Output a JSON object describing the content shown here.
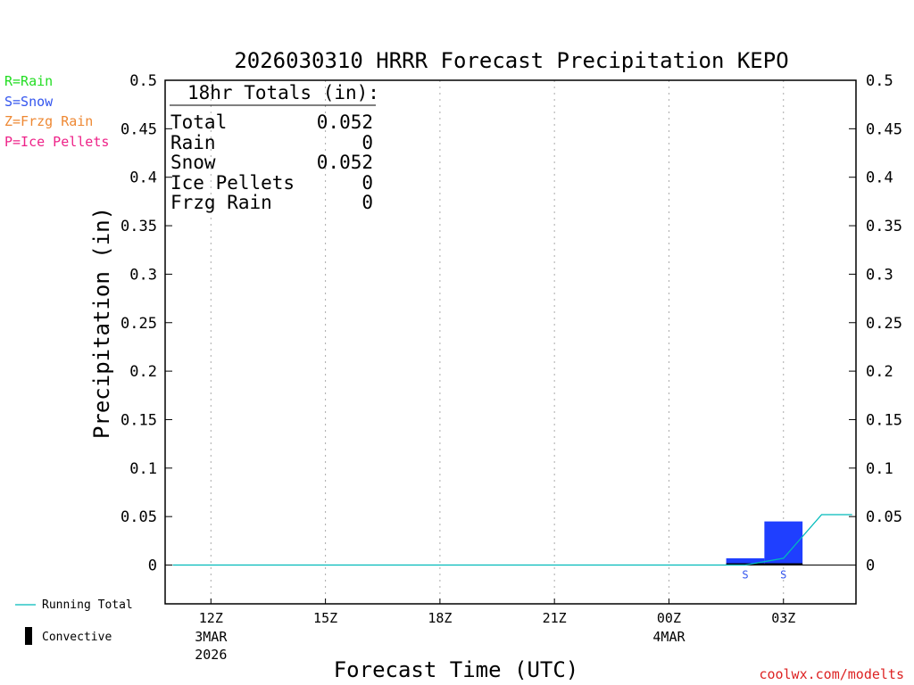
{
  "chart_data": {
    "type": "bar",
    "title": "2026030310 HRRR Forecast Precipitation KEPO",
    "xlabel": "Forecast Time (UTC)",
    "ylabel": "Precipitation (in)",
    "ylim": [
      -0.04,
      0.5
    ],
    "yticks": [
      0,
      0.05,
      0.1,
      0.15,
      0.2,
      0.25,
      0.3,
      0.35,
      0.4,
      0.45,
      0.5
    ],
    "ytick_labels": [
      "0",
      "0.05",
      "0.1",
      "0.15",
      "0.2",
      "0.25",
      "0.3",
      "0.35",
      "0.4",
      "0.45",
      "0.5"
    ],
    "xlim_hours": [
      -1.2,
      16.9
    ],
    "xticks": [
      {
        "hour": 0,
        "label": "12Z",
        "date": "3MAR",
        "year": "2026"
      },
      {
        "hour": 3,
        "label": "15Z",
        "date": "",
        "year": ""
      },
      {
        "hour": 6,
        "label": "18Z",
        "date": "",
        "year": ""
      },
      {
        "hour": 9,
        "label": "21Z",
        "date": "",
        "year": ""
      },
      {
        "hour": 12,
        "label": "00Z",
        "date": "4MAR",
        "year": ""
      },
      {
        "hour": 15,
        "label": "03Z",
        "date": "",
        "year": ""
      }
    ],
    "grid": "vertical dotted",
    "series": [
      {
        "name": "",
        "kind": "hourly bars",
        "hours": [
          -1,
          0,
          1,
          2,
          3,
          4,
          5,
          6,
          7,
          8,
          9,
          10,
          11,
          12,
          13,
          14,
          15,
          16
        ],
        "values": [
          0,
          0,
          0,
          0,
          0,
          0,
          0,
          0,
          0,
          0,
          0,
          0,
          0,
          0,
          0,
          0.007,
          0.045,
          0
        ],
        "ptype": [
          "",
          "",
          "",
          "",
          "",
          "",
          "",
          "",
          "",
          "",
          "",
          "",
          "",
          "",
          "",
          "S",
          "S",
          ""
        ],
        "color": "#1f3fff"
      },
      {
        "name": "Running Total",
        "kind": "line",
        "hours": [
          -1,
          0,
          1,
          2,
          3,
          4,
          5,
          6,
          7,
          8,
          9,
          10,
          11,
          12,
          13,
          14,
          15,
          16,
          16.8
        ],
        "values": [
          0,
          0,
          0,
          0,
          0,
          0,
          0,
          0,
          0,
          0,
          0,
          0,
          0,
          0,
          0,
          0,
          0.007,
          0.052,
          0.052
        ],
        "color": "#00bbbb"
      }
    ],
    "totals_box": {
      "heading": "18hr Totals (in):",
      "rows": [
        {
          "label": "Total",
          "value": "0.052"
        },
        {
          "label": "Rain",
          "value": "0"
        },
        {
          "label": "Snow",
          "value": "0.052"
        },
        {
          "label": "Ice Pellets",
          "value": "0"
        },
        {
          "label": "Frzg Rain",
          "value": "0"
        }
      ]
    },
    "ptype_legend": [
      {
        "text": "R=Rain",
        "color": "#22dd22"
      },
      {
        "text": "S=Snow",
        "color": "#3355ee"
      },
      {
        "text": "Z=Frzg Rain",
        "color": "#ee8833"
      },
      {
        "text": "P=Ice Pellets",
        "color": "#ee2288"
      }
    ],
    "legend": [
      {
        "text": "Running Total",
        "kind": "line",
        "color": "#00bbbb"
      },
      {
        "text": "Convective",
        "kind": "bar",
        "color": "#000000"
      }
    ],
    "credit": "coolwx.com/modelts"
  }
}
